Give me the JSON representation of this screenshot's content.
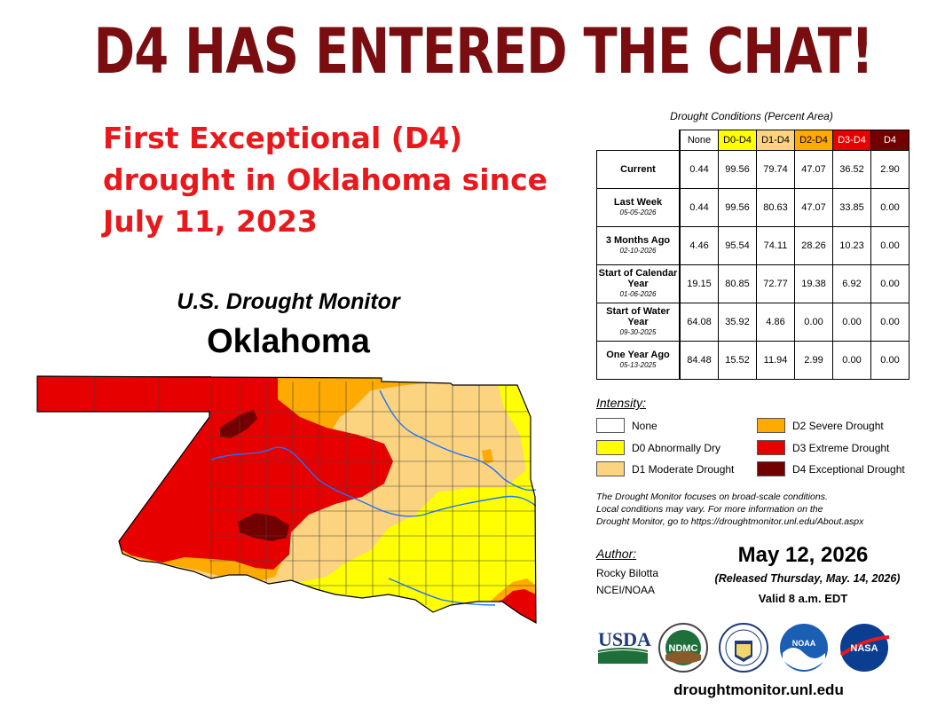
{
  "banner": "D4 HAS ENTERED THE CHAT!",
  "headline": [
    "First Exceptional (D4)",
    "drought in Oklahoma since",
    "July 11, 2023"
  ],
  "map": {
    "title": "U.S. Drought Monitor",
    "state": "Oklahoma"
  },
  "table": {
    "caption": "Drought Conditions (Percent Area)",
    "columns": [
      "None",
      "D0-D4",
      "D1-D4",
      "D2-D4",
      "D3-D4",
      "D4"
    ],
    "column_colors": [
      "#ffffff",
      "#ffff00",
      "#fcd37f",
      "#ffaa00",
      "#e60000",
      "#730000"
    ],
    "rows": [
      {
        "label": "Current",
        "date": "",
        "values": [
          "0.44",
          "99.56",
          "79.74",
          "47.07",
          "36.52",
          "2.90"
        ]
      },
      {
        "label": "Last Week",
        "date": "05-05-2026",
        "values": [
          "0.44",
          "99.56",
          "80.63",
          "47.07",
          "33.85",
          "0.00"
        ]
      },
      {
        "label": "3 Months Ago",
        "date": "02-10-2026",
        "values": [
          "4.46",
          "95.54",
          "74.11",
          "28.26",
          "10.23",
          "0.00"
        ]
      },
      {
        "label": "Start of Calendar Year",
        "date": "01-06-2026",
        "values": [
          "19.15",
          "80.85",
          "72.77",
          "19.38",
          "6.92",
          "0.00"
        ]
      },
      {
        "label": "Start of Water Year",
        "date": "09-30-2025",
        "values": [
          "64.08",
          "35.92",
          "4.86",
          "0.00",
          "0.00",
          "0.00"
        ]
      },
      {
        "label": "One Year Ago",
        "date": "05-13-2025",
        "values": [
          "84.48",
          "15.52",
          "11.94",
          "2.99",
          "0.00",
          "0.00"
        ]
      }
    ]
  },
  "legend": {
    "title": "Intensity:",
    "items": [
      {
        "label": "None",
        "color": "#ffffff"
      },
      {
        "label": "D0 Abnormally Dry",
        "color": "#ffff00"
      },
      {
        "label": "D1 Moderate Drought",
        "color": "#fcd37f"
      },
      {
        "label": "D2 Severe Drought",
        "color": "#ffaa00"
      },
      {
        "label": "D3 Extreme Drought",
        "color": "#e60000"
      },
      {
        "label": "D4 Exceptional Drought",
        "color": "#730000"
      }
    ]
  },
  "note": [
    "The Drought Monitor focuses on broad-scale conditions.",
    "Local conditions may vary. For more information on the",
    "Drought Monitor, go to https://droughtmonitor.unl.edu/About.aspx"
  ],
  "author": {
    "label": "Author:",
    "name": "Rocky Bilotta",
    "org": "NCEI/NOAA"
  },
  "date": "May 12, 2026",
  "released": "(Released Thursday, May. 14, 2026)",
  "valid": "Valid 8 a.m. EDT",
  "logos": {
    "usda": "USDA",
    "ndmc": "NDMC",
    "noaa": "NOAA",
    "nasa": "NASA"
  },
  "site": "droughtmonitor.unl.edu"
}
